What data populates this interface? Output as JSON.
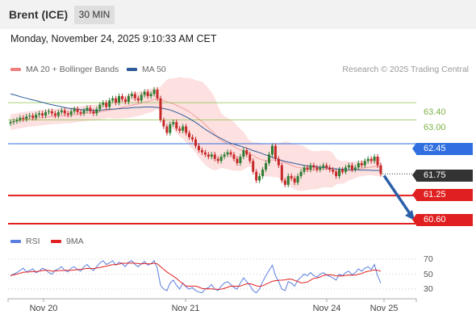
{
  "header": {
    "title": "Brent (ICE)",
    "timeframe": "30 MIN"
  },
  "datetime": "Monday, November 24, 2025 9:10:33 AM CET",
  "legend": {
    "bollinger": "MA 20 + Bollinger Bands",
    "ma50": "MA 50",
    "rsi": "RSI",
    "rsi_ma": "9MA"
  },
  "copyright": "Research © 2025 Trading Central",
  "colors": {
    "bollinger": "#f08080",
    "band_fill": "#fde0e0",
    "ma50": "#2e5c9a",
    "resistance": "#8bc34a",
    "pivot": "#2f6fe0",
    "support": "#e02020",
    "current": "#333333",
    "up_candle": "#2e7d32",
    "down_candle": "#c62828",
    "rsi_line": "#5b7fe0",
    "rsi_ma_line": "#e02020",
    "arrow": "#2a5fa8"
  },
  "levels": {
    "r2": "63.40",
    "r1": "63.00",
    "pivot": "62.45",
    "current": "61.75",
    "s1": "61.25",
    "s2": "60.60"
  },
  "rsi_ticks": [
    "70",
    "50",
    "30"
  ],
  "x_labels": [
    "Nov 20",
    "Nov 21",
    "Nov 24",
    "Nov 25"
  ],
  "chart_data": {
    "type": "candlestick",
    "timeframe": "30 MIN",
    "y_range": [
      60.45,
      64.0
    ],
    "levels": [
      63.4,
      63.0,
      62.45,
      61.75,
      61.25,
      60.6
    ],
    "close": [
      62.95,
      62.97,
      63.0,
      63.05,
      63.02,
      63.08,
      63.1,
      63.05,
      63.12,
      63.15,
      63.1,
      63.18,
      63.2,
      63.15,
      63.1,
      63.18,
      63.22,
      63.15,
      63.12,
      63.2,
      63.25,
      63.18,
      63.15,
      63.22,
      63.28,
      63.2,
      63.15,
      63.25,
      63.35,
      63.4,
      63.3,
      63.45,
      63.5,
      63.4,
      63.55,
      63.48,
      63.42,
      63.55,
      63.6,
      63.5,
      63.45,
      63.58,
      63.65,
      63.55,
      63.6,
      63.7,
      63.5,
      63.0,
      62.85,
      62.7,
      62.9,
      62.95,
      62.8,
      62.75,
      62.85,
      62.7,
      62.6,
      62.55,
      62.4,
      62.3,
      62.25,
      62.2,
      62.15,
      62.2,
      62.1,
      62.05,
      62.15,
      62.2,
      62.25,
      62.2,
      62.1,
      62.0,
      62.15,
      62.3,
      62.2,
      62.05,
      61.8,
      61.6,
      61.7,
      61.85,
      62.0,
      62.2,
      62.4,
      62.1,
      61.95,
      61.6,
      61.5,
      61.7,
      61.65,
      61.55,
      61.7,
      61.8,
      61.9,
      61.85,
      61.95,
      61.9,
      61.85,
      61.9,
      61.95,
      61.9,
      61.85,
      61.8,
      61.7,
      61.85,
      61.8,
      61.9,
      61.95,
      61.85,
      61.9,
      62.0,
      61.95,
      62.05,
      62.1,
      62.05,
      62.15,
      61.95,
      61.75
    ],
    "ma50": [
      63.6,
      63.58,
      63.55,
      63.52,
      63.5,
      63.47,
      63.45,
      63.42,
      63.4,
      63.37,
      63.35,
      63.33,
      63.31,
      63.29,
      63.27,
      63.26,
      63.25,
      63.24,
      63.23,
      63.22,
      63.22,
      63.22,
      63.23,
      63.24,
      63.25,
      63.25,
      63.26,
      63.27,
      63.27,
      63.28,
      63.29,
      63.29,
      63.3,
      63.3,
      63.3,
      63.29,
      63.28,
      63.26,
      63.24,
      63.21,
      63.17,
      63.13,
      63.08,
      63.03,
      62.97,
      62.91,
      62.84,
      62.77,
      62.71,
      62.65,
      62.6,
      62.55,
      62.5,
      62.46,
      62.43,
      62.4,
      62.37,
      62.34,
      62.3,
      62.27,
      62.24,
      62.2,
      62.17,
      62.13,
      62.1,
      62.07,
      62.04,
      62.02,
      62.0,
      61.98,
      61.96,
      61.94,
      61.93,
      61.92,
      61.91,
      61.9,
      61.89,
      61.88,
      61.87,
      61.86,
      61.86,
      61.85,
      61.85,
      61.85,
      61.84,
      61.84,
      61.84,
      61.83,
      61.83,
      61.83
    ],
    "rsi": [
      48,
      50,
      52,
      55,
      58,
      53,
      55,
      57,
      52,
      54,
      58,
      56,
      52,
      50,
      55,
      57,
      60,
      55,
      53,
      58,
      60,
      56,
      54,
      60,
      63,
      58,
      55,
      60,
      65,
      68,
      63,
      65,
      68,
      62,
      66,
      64,
      60,
      66,
      68,
      63,
      60,
      64,
      67,
      62,
      64,
      68,
      58,
      35,
      30,
      28,
      38,
      42,
      35,
      30,
      38,
      33,
      30,
      32,
      28,
      26,
      25,
      30,
      32,
      36,
      30,
      28,
      34,
      38,
      40,
      36,
      32,
      30,
      38,
      45,
      40,
      35,
      28,
      25,
      30,
      40,
      48,
      55,
      62,
      48,
      40,
      30,
      28,
      40,
      38,
      34,
      42,
      46,
      50,
      48,
      52,
      48,
      46,
      50,
      52,
      49,
      47,
      45,
      42,
      50,
      48,
      52,
      54,
      49,
      52,
      57,
      54,
      58,
      60,
      56,
      63,
      48,
      38
    ],
    "rsi_ticks": [
      70,
      50,
      30
    ],
    "x_ticks": [
      "Nov 20",
      "Nov 21",
      "Nov 24",
      "Nov 25"
    ],
    "legend": [
      "MA 20 + Bollinger Bands",
      "MA 50",
      "RSI",
      "9MA"
    ],
    "projection": {
      "from": 61.75,
      "to": 60.6
    }
  }
}
